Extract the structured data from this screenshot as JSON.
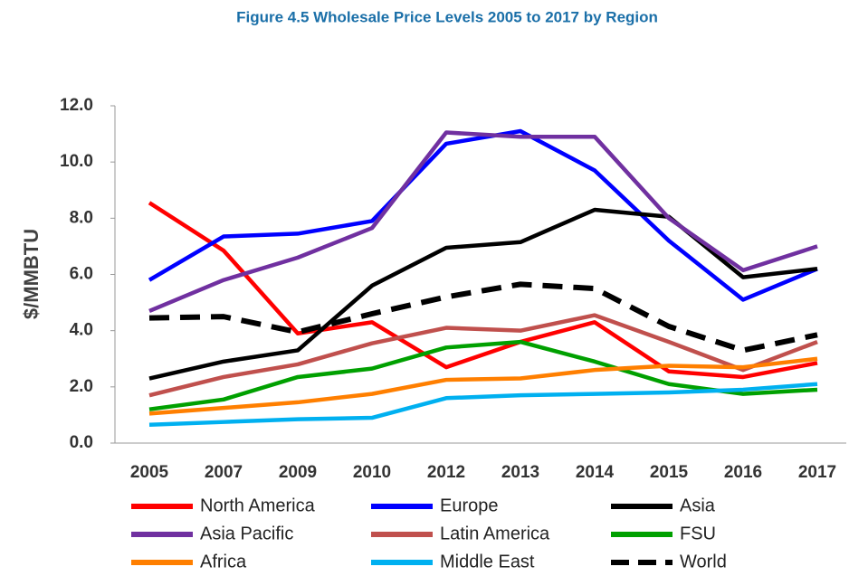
{
  "chart_data": {
    "type": "line",
    "title": "Figure 4.5 Wholesale Price Levels 2005 to 2017 by Region",
    "ylabel": "$/MMBTU",
    "categories": [
      "2005",
      "2007",
      "2009",
      "2010",
      "2012",
      "2013",
      "2014",
      "2015",
      "2016",
      "2017"
    ],
    "ylim": [
      0,
      12
    ],
    "yticks": [
      {
        "value": 0,
        "label": "0.0"
      },
      {
        "value": 2,
        "label": "2.0"
      },
      {
        "value": 4,
        "label": "4.0"
      },
      {
        "value": 6,
        "label": "6.0"
      },
      {
        "value": 8,
        "label": "8.0"
      },
      {
        "value": 10,
        "label": "10.0"
      },
      {
        "value": 12,
        "label": "12.0"
      }
    ],
    "grid": false,
    "legend": "bottom",
    "series": [
      {
        "name": "North America",
        "color": "#ff0000",
        "values": [
          8.55,
          6.85,
          3.9,
          4.3,
          2.7,
          3.6,
          4.3,
          2.55,
          2.35,
          2.85
        ]
      },
      {
        "name": "Europe",
        "color": "#0000ff",
        "values": [
          5.8,
          7.35,
          7.45,
          7.9,
          10.65,
          11.1,
          9.7,
          7.2,
          5.1,
          6.2
        ]
      },
      {
        "name": "Asia",
        "color": "#000000",
        "values": [
          2.3,
          2.9,
          3.3,
          5.6,
          6.95,
          7.15,
          8.3,
          8.05,
          5.9,
          6.2
        ]
      },
      {
        "name": "Asia Pacific",
        "color": "#7030a0",
        "values": [
          4.7,
          5.8,
          6.6,
          7.65,
          11.05,
          10.9,
          10.9,
          8.0,
          6.15,
          7.0
        ]
      },
      {
        "name": "Latin America",
        "color": "#c0504d",
        "values": [
          1.7,
          2.35,
          2.8,
          3.55,
          4.1,
          4.0,
          4.55,
          3.6,
          2.6,
          3.6
        ]
      },
      {
        "name": "FSU",
        "color": "#00a000",
        "values": [
          1.2,
          1.55,
          2.35,
          2.65,
          3.4,
          3.6,
          2.9,
          2.1,
          1.75,
          1.9
        ]
      },
      {
        "name": "Africa",
        "color": "#ff7f00",
        "values": [
          1.05,
          1.25,
          1.45,
          1.75,
          2.25,
          2.3,
          2.6,
          2.75,
          2.7,
          3.0
        ]
      },
      {
        "name": "Middle East",
        "color": "#00b0f0",
        "values": [
          0.65,
          0.75,
          0.85,
          0.9,
          1.6,
          1.7,
          1.75,
          1.8,
          1.9,
          2.1
        ]
      },
      {
        "name": "World",
        "color": "#000000",
        "dash": "dashed",
        "values": [
          4.45,
          4.5,
          3.95,
          4.6,
          5.2,
          5.65,
          5.5,
          4.15,
          3.3,
          3.85
        ]
      }
    ]
  }
}
